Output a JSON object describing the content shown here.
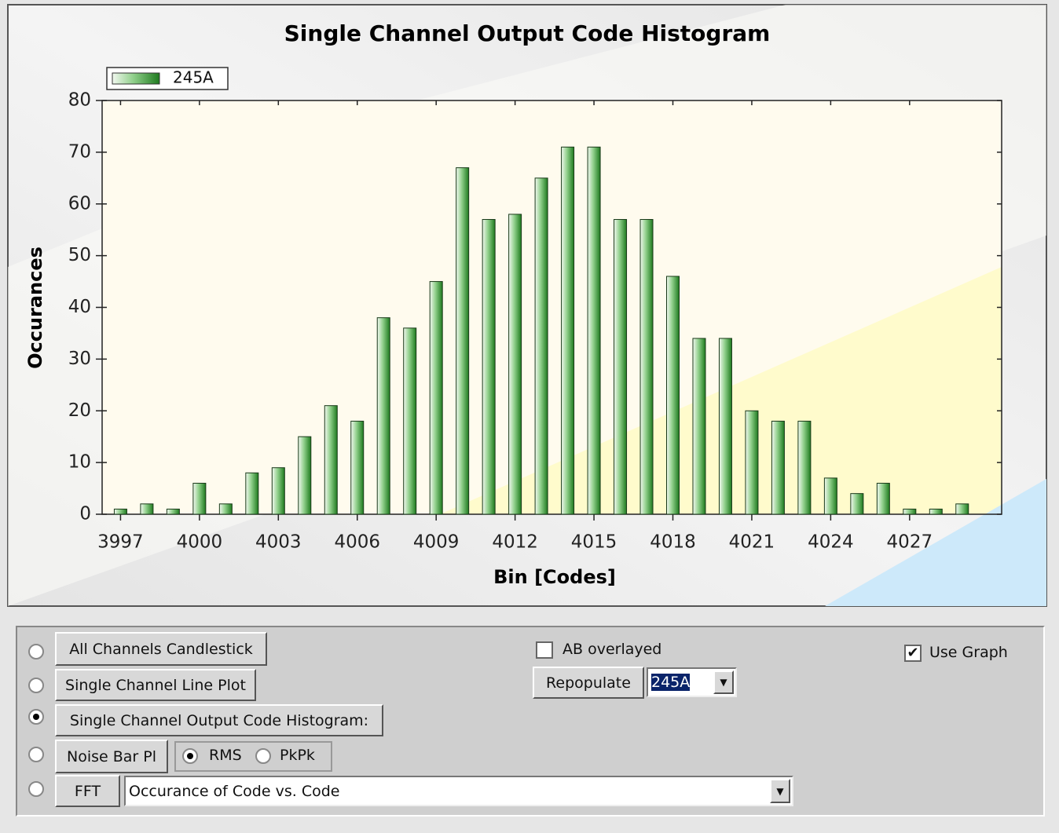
{
  "chart_data": {
    "type": "bar",
    "title": "Single Channel Output Code Histogram",
    "x_label": "Bin [Codes]",
    "y_label": "Occurances",
    "x": [
      3997,
      3998,
      3999,
      4000,
      4001,
      4002,
      4003,
      4004,
      4005,
      4006,
      4007,
      4008,
      4009,
      4010,
      4011,
      4012,
      4013,
      4014,
      4015,
      4016,
      4017,
      4018,
      4019,
      4020,
      4021,
      4022,
      4023,
      4024,
      4025,
      4026,
      4027,
      4028,
      4029
    ],
    "series": [
      {
        "name": "245A",
        "color": "#1e7a1e",
        "values": [
          1,
          2,
          1,
          6,
          2,
          8,
          9,
          15,
          21,
          18,
          38,
          36,
          45,
          67,
          57,
          58,
          65,
          71,
          71,
          57,
          57,
          46,
          34,
          34,
          20,
          18,
          18,
          7,
          4,
          6,
          1,
          1,
          2
        ]
      }
    ],
    "xlim": [
      3996.3,
      4030.5
    ],
    "xticks": [
      3997,
      4000,
      4003,
      4006,
      4009,
      4012,
      4015,
      4018,
      4021,
      4024,
      4027
    ],
    "ylim": [
      0,
      80
    ],
    "yticks": [
      0,
      10,
      20,
      30,
      40,
      50,
      60,
      70,
      80
    ],
    "legend": "top-left"
  },
  "controls": {
    "views": [
      {
        "label": "All Channels Candlestick",
        "selected": false
      },
      {
        "label": "Single  Channel Line Plot",
        "selected": false
      },
      {
        "label": "Single Channel Output Code Histogram:",
        "selected": true
      },
      {
        "label": "Noise Bar Pl",
        "selected": false
      },
      {
        "label": "FFT",
        "selected": false
      }
    ],
    "noise_mode": [
      {
        "label": "RMS",
        "selected": true
      },
      {
        "label": "PkPk",
        "selected": false
      }
    ],
    "ab_overlayed": {
      "label": "AB overlayed",
      "checked": false
    },
    "use_graph": {
      "label": "Use Graph",
      "checked": true
    },
    "repopulate": "Repopulate",
    "channel_select": "245A",
    "plot_select": "Occurance of Code vs. Code"
  }
}
